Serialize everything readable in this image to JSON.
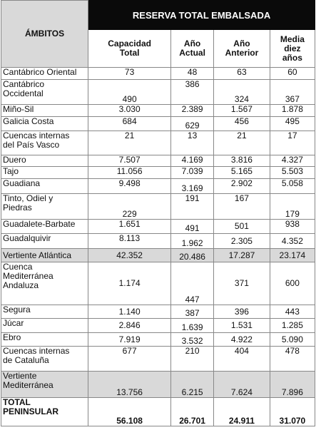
{
  "header": {
    "group_title": "RESERVA TOTAL EMBALSADA",
    "ambitos": "ÁMBITOS",
    "capacidad": [
      "Capacidad",
      "Total"
    ],
    "actual": [
      "Año",
      "Actual"
    ],
    "anterior": [
      "Año",
      "Anterior"
    ],
    "media": [
      "Media",
      "diez",
      "años"
    ]
  },
  "rows": [
    {
      "name": [
        "Cantábrico Oriental"
      ],
      "capacidad": "73",
      "actual": "48",
      "anterior": "63",
      "media": "60"
    },
    {
      "name": [
        "Cantábrico",
        "Occidental"
      ],
      "capacidad": "490",
      "actual": "386",
      "anterior": "324",
      "media": "367"
    },
    {
      "name": [
        "Miño-Sil"
      ],
      "capacidad": "3.030",
      "actual": "2.389",
      "anterior": "1.567",
      "media": "1.878"
    },
    {
      "name": [
        "Galicia Costa"
      ],
      "capacidad": "684",
      "actual": "629",
      "anterior": "456",
      "media": "495"
    },
    {
      "name": [
        "Cuencas internas",
        "del País Vasco"
      ],
      "capacidad": "21",
      "actual": "13",
      "anterior": "21",
      "media": "17"
    },
    {
      "name": [
        "Duero"
      ],
      "capacidad": "7.507",
      "actual": "4.169",
      "anterior": "3.816",
      "media": "4.327"
    },
    {
      "name": [
        "Tajo"
      ],
      "capacidad": "11.056",
      "actual": "7.039",
      "anterior": "5.165",
      "media": "5.503"
    },
    {
      "name": [
        "Guadiana"
      ],
      "capacidad": "9.498",
      "actual": "3.169",
      "anterior": "2.902",
      "media": "5.058"
    },
    {
      "name": [
        "Tinto, Odiel y",
        "Piedras"
      ],
      "capacidad": "229",
      "actual": "191",
      "anterior": "167",
      "media": "179"
    },
    {
      "name": [
        "Guadalete-Barbate"
      ],
      "capacidad": "1.651",
      "actual": "491",
      "anterior": "501",
      "media": "938"
    },
    {
      "name": [
        "Guadalquivir"
      ],
      "capacidad": "8.113",
      "actual": "1.962",
      "anterior": "2.305",
      "media": "4.352"
    },
    {
      "name": [
        "Vertiente Atlántica"
      ],
      "capacidad": "42.352",
      "actual": "20.486",
      "anterior": "17.287",
      "media": "23.174"
    },
    {
      "name": [
        "Cuenca",
        "Mediterránea",
        "Andaluza"
      ],
      "capacidad": "1.174",
      "actual": "447",
      "anterior": "371",
      "media": "600"
    },
    {
      "name": [
        "Segura"
      ],
      "capacidad": "1.140",
      "actual": "387",
      "anterior": "396",
      "media": "443"
    },
    {
      "name": [
        "Júcar"
      ],
      "capacidad": "2.846",
      "actual": "1.639",
      "anterior": "1.531",
      "media": "1.285"
    },
    {
      "name": [
        "Ebro"
      ],
      "capacidad": "7.919",
      "actual": "3.532",
      "anterior": "4.922",
      "media": "5.090"
    },
    {
      "name": [
        "Cuencas internas",
        "de Cataluña"
      ],
      "capacidad": "677",
      "actual": "210",
      "anterior": "404",
      "media": "478"
    },
    {
      "name": [
        "Vertiente",
        "Mediterránea"
      ],
      "capacidad": "13.756",
      "actual": "6.215",
      "anterior": "7.624",
      "media": "7.896"
    },
    {
      "name": [
        "TOTAL",
        "PENINSULAR"
      ],
      "capacidad": "56.108",
      "actual": "26.701",
      "anterior": "24.911",
      "media": "31.070"
    }
  ]
}
